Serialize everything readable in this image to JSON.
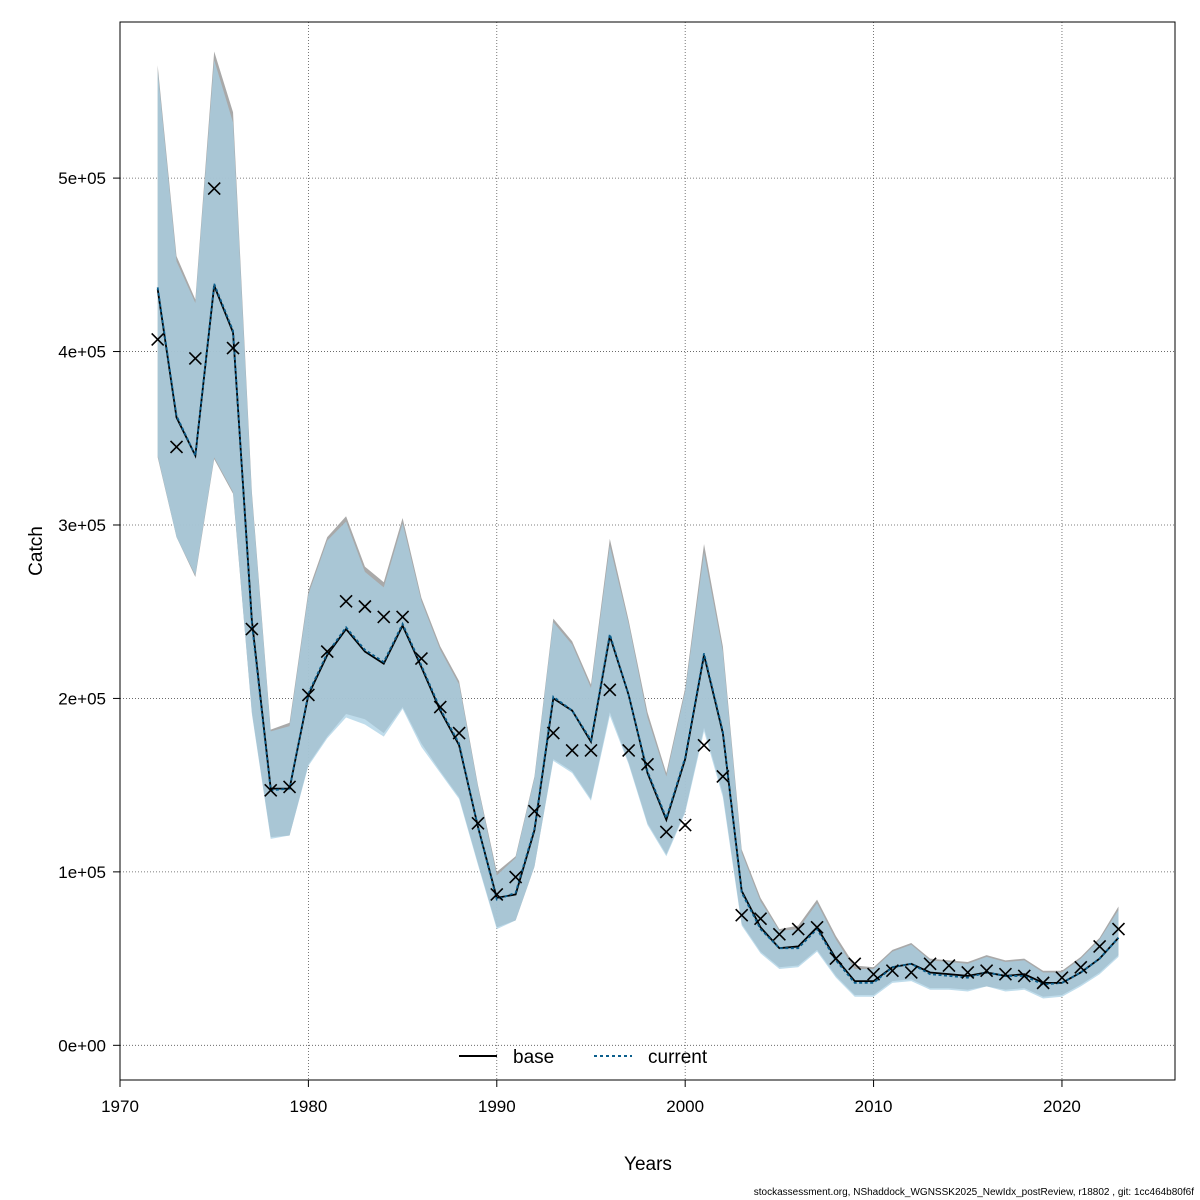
{
  "chart_data": {
    "type": "line",
    "xlabel": "Years",
    "ylabel": "Catch",
    "xlim": [
      1970,
      2026
    ],
    "ylim": [
      -20000,
      590000
    ],
    "x_ticks": [
      1970,
      1980,
      1990,
      2000,
      2010,
      2020
    ],
    "y_ticks": [
      0,
      100000,
      200000,
      300000,
      400000,
      500000
    ],
    "y_tick_labels": [
      "0e+00",
      "1e+05",
      "2e+05",
      "3e+05",
      "4e+05",
      "5e+05"
    ],
    "grid": true,
    "legend_position": "bottom-center",
    "years": [
      1972,
      1973,
      1974,
      1975,
      1976,
      1977,
      1978,
      1979,
      1980,
      1981,
      1982,
      1983,
      1984,
      1985,
      1986,
      1987,
      1988,
      1989,
      1990,
      1991,
      1992,
      1993,
      1994,
      1995,
      1996,
      1997,
      1998,
      1999,
      2000,
      2001,
      2002,
      2003,
      2004,
      2005,
      2006,
      2007,
      2008,
      2009,
      2010,
      2011,
      2012,
      2013,
      2014,
      2015,
      2016,
      2017,
      2018,
      2019,
      2020,
      2021,
      2022,
      2023
    ],
    "series": [
      {
        "name": "base",
        "color": "#000000",
        "style": "solid",
        "band_color": "#9a9a9a",
        "values": [
          436000,
          362000,
          340000,
          438000,
          411000,
          245000,
          148000,
          148000,
          202000,
          225000,
          240000,
          227000,
          220000,
          242000,
          218000,
          193000,
          173000,
          126000,
          85000,
          87000,
          124000,
          200000,
          193000,
          175000,
          236000,
          202000,
          157000,
          130000,
          165000,
          225000,
          180000,
          89000,
          68000,
          56000,
          57000,
          68000,
          50000,
          37000,
          37000,
          45000,
          47000,
          42000,
          41000,
          40000,
          42000,
          40000,
          41000,
          36000,
          36000,
          42000,
          50000,
          62000
        ],
        "lower": [
          339000,
          293000,
          270000,
          338000,
          318000,
          192000,
          120000,
          121000,
          162000,
          178000,
          191000,
          188000,
          180000,
          195000,
          174000,
          158000,
          143000,
          105000,
          68000,
          72000,
          103000,
          165000,
          158000,
          142000,
          192000,
          163000,
          128000,
          110000,
          135000,
          183000,
          145000,
          70000,
          54000,
          45000,
          46000,
          55000,
          40000,
          29000,
          29000,
          37000,
          38000,
          33000,
          33000,
          32000,
          34000,
          32000,
          33000,
          28000,
          29000,
          35000,
          42000,
          52000
        ],
        "upper": [
          565000,
          455000,
          430000,
          573000,
          538000,
          319000,
          182000,
          186000,
          262000,
          293000,
          305000,
          276000,
          267000,
          304000,
          258000,
          230000,
          210000,
          150000,
          100000,
          109000,
          155000,
          246000,
          233000,
          208000,
          292000,
          245000,
          192000,
          157000,
          206000,
          289000,
          230000,
          113000,
          85000,
          67000,
          69000,
          84000,
          63000,
          46000,
          45000,
          55000,
          59000,
          50000,
          49000,
          48000,
          52000,
          49000,
          50000,
          43000,
          43000,
          51000,
          62000,
          80000
        ]
      },
      {
        "name": "current",
        "color": "#0b5e8c",
        "style": "dotted",
        "band_color": "#a9d0e4",
        "values": [
          437000,
          363000,
          340000,
          439000,
          412000,
          243000,
          147000,
          148000,
          203000,
          226000,
          241000,
          228000,
          221000,
          243000,
          219000,
          194000,
          174000,
          126000,
          84000,
          88000,
          125000,
          201000,
          193000,
          176000,
          237000,
          202000,
          158000,
          131000,
          166000,
          226000,
          181000,
          88000,
          67000,
          56000,
          56000,
          67000,
          49000,
          36000,
          36000,
          45000,
          47000,
          41000,
          40000,
          39000,
          42000,
          40000,
          40000,
          35000,
          36000,
          42000,
          50000,
          62000
        ],
        "lower": [
          340000,
          293000,
          271000,
          339000,
          319000,
          191000,
          119000,
          121000,
          161000,
          177000,
          189000,
          185000,
          178000,
          194000,
          172000,
          157000,
          142000,
          104000,
          67000,
          72000,
          103000,
          164000,
          157000,
          141000,
          190000,
          162000,
          127000,
          109000,
          134000,
          181000,
          143000,
          69000,
          53000,
          44000,
          45000,
          54000,
          39000,
          28000,
          28000,
          36000,
          37000,
          32000,
          32000,
          31000,
          34000,
          31000,
          32000,
          27000,
          28000,
          34000,
          41000,
          51000
        ],
        "upper": [
          562000,
          452000,
          428000,
          568000,
          532000,
          317000,
          181000,
          184000,
          260000,
          291000,
          302000,
          273000,
          264000,
          301000,
          256000,
          228000,
          208000,
          149000,
          98000,
          108000,
          154000,
          244000,
          231000,
          206000,
          288000,
          243000,
          189000,
          155000,
          204000,
          284000,
          227000,
          111000,
          83000,
          66000,
          67000,
          82000,
          61000,
          44000,
          44000,
          54000,
          58000,
          49000,
          48000,
          47000,
          51000,
          48000,
          49000,
          42000,
          42000,
          50000,
          61000,
          78000
        ]
      },
      {
        "name": "observed",
        "marker": "x",
        "color": "#000000",
        "values": [
          407000,
          345000,
          396000,
          494000,
          402000,
          240000,
          147000,
          149000,
          202000,
          227000,
          256000,
          253000,
          247000,
          247000,
          223000,
          195000,
          180000,
          128000,
          87000,
          97000,
          135000,
          180000,
          170000,
          170000,
          205000,
          170000,
          162000,
          123000,
          127000,
          173000,
          155000,
          75000,
          73000,
          64000,
          67000,
          68000,
          50000,
          47000,
          41000,
          43000,
          42000,
          47000,
          46000,
          42000,
          43000,
          41000,
          40000,
          36000,
          39000,
          45000,
          57000,
          67000
        ]
      }
    ],
    "legend": [
      {
        "label": "base",
        "style": "solid",
        "color": "#000000"
      },
      {
        "label": "current",
        "style": "dotted",
        "color": "#0b5e8c"
      }
    ]
  },
  "footer_text": "stockassessment.org, NShaddock_WGNSSK2025_NewIdx_postReview, r18802 , git: 1cc464b80f6f"
}
